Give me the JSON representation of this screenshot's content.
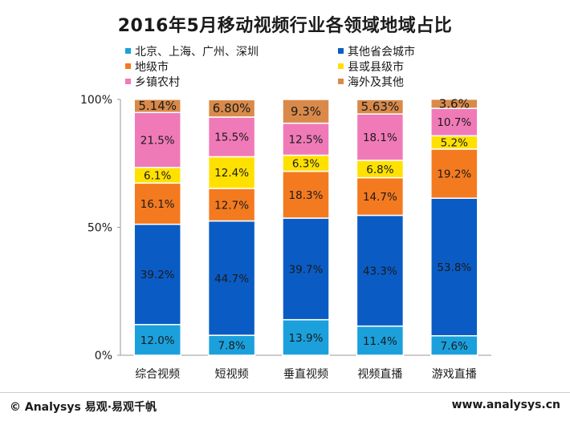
{
  "chart_data": {
    "type": "bar",
    "stacked": true,
    "title": "2016年5月移动视频行业各领域地域占比",
    "categories": [
      "综合视频",
      "短视频",
      "垂直视频",
      "视频直播",
      "游戏直播"
    ],
    "series": [
      {
        "name": "北京、上海、广州、深圳",
        "color": "#1ba0dc",
        "values": [
          12.0,
          7.8,
          13.9,
          11.4,
          7.6
        ],
        "labels": [
          "12.0%",
          "7.8%",
          "13.9%",
          "11.4%",
          "7.6%"
        ]
      },
      {
        "name": "其他省会城市",
        "color": "#0a5cc4",
        "values": [
          39.2,
          44.7,
          39.7,
          43.3,
          53.8
        ],
        "labels": [
          "39.2%",
          "44.7%",
          "39.7%",
          "43.3%",
          "53.8%"
        ]
      },
      {
        "name": "地级市",
        "color": "#f47a20",
        "values": [
          16.1,
          12.7,
          18.3,
          14.7,
          19.2
        ],
        "labels": [
          "16.1%",
          "12.7%",
          "18.3%",
          "14.7%",
          "19.2%"
        ]
      },
      {
        "name": "县或县级市",
        "color": "#ffe100",
        "values": [
          6.1,
          12.4,
          6.3,
          6.8,
          5.2
        ],
        "labels": [
          "6.1%",
          "12.4%",
          "6.3%",
          "6.8%",
          "5.2%"
        ]
      },
      {
        "name": "乡镇农村",
        "color": "#f07ab8",
        "values": [
          21.5,
          15.5,
          12.5,
          18.1,
          10.7
        ],
        "labels": [
          "21.5%",
          "15.5%",
          "12.5%",
          "18.1%",
          "10.7%"
        ]
      },
      {
        "name": "海外及其他",
        "color": "#d98a4a",
        "values": [
          5.14,
          6.8,
          9.3,
          5.63,
          3.6
        ],
        "labels": [
          "5.14%",
          "6.80%",
          "9.3%",
          "5.63%",
          "3.6%"
        ]
      }
    ],
    "ylim": [
      0,
      100
    ],
    "yticks": [
      0,
      50,
      100
    ],
    "ytick_labels": [
      "0%",
      "50%",
      "100%"
    ],
    "legend_position": "top"
  },
  "footer": {
    "left": "© Analysys 易观·易观千帆",
    "right": "www.analysys.cn"
  }
}
